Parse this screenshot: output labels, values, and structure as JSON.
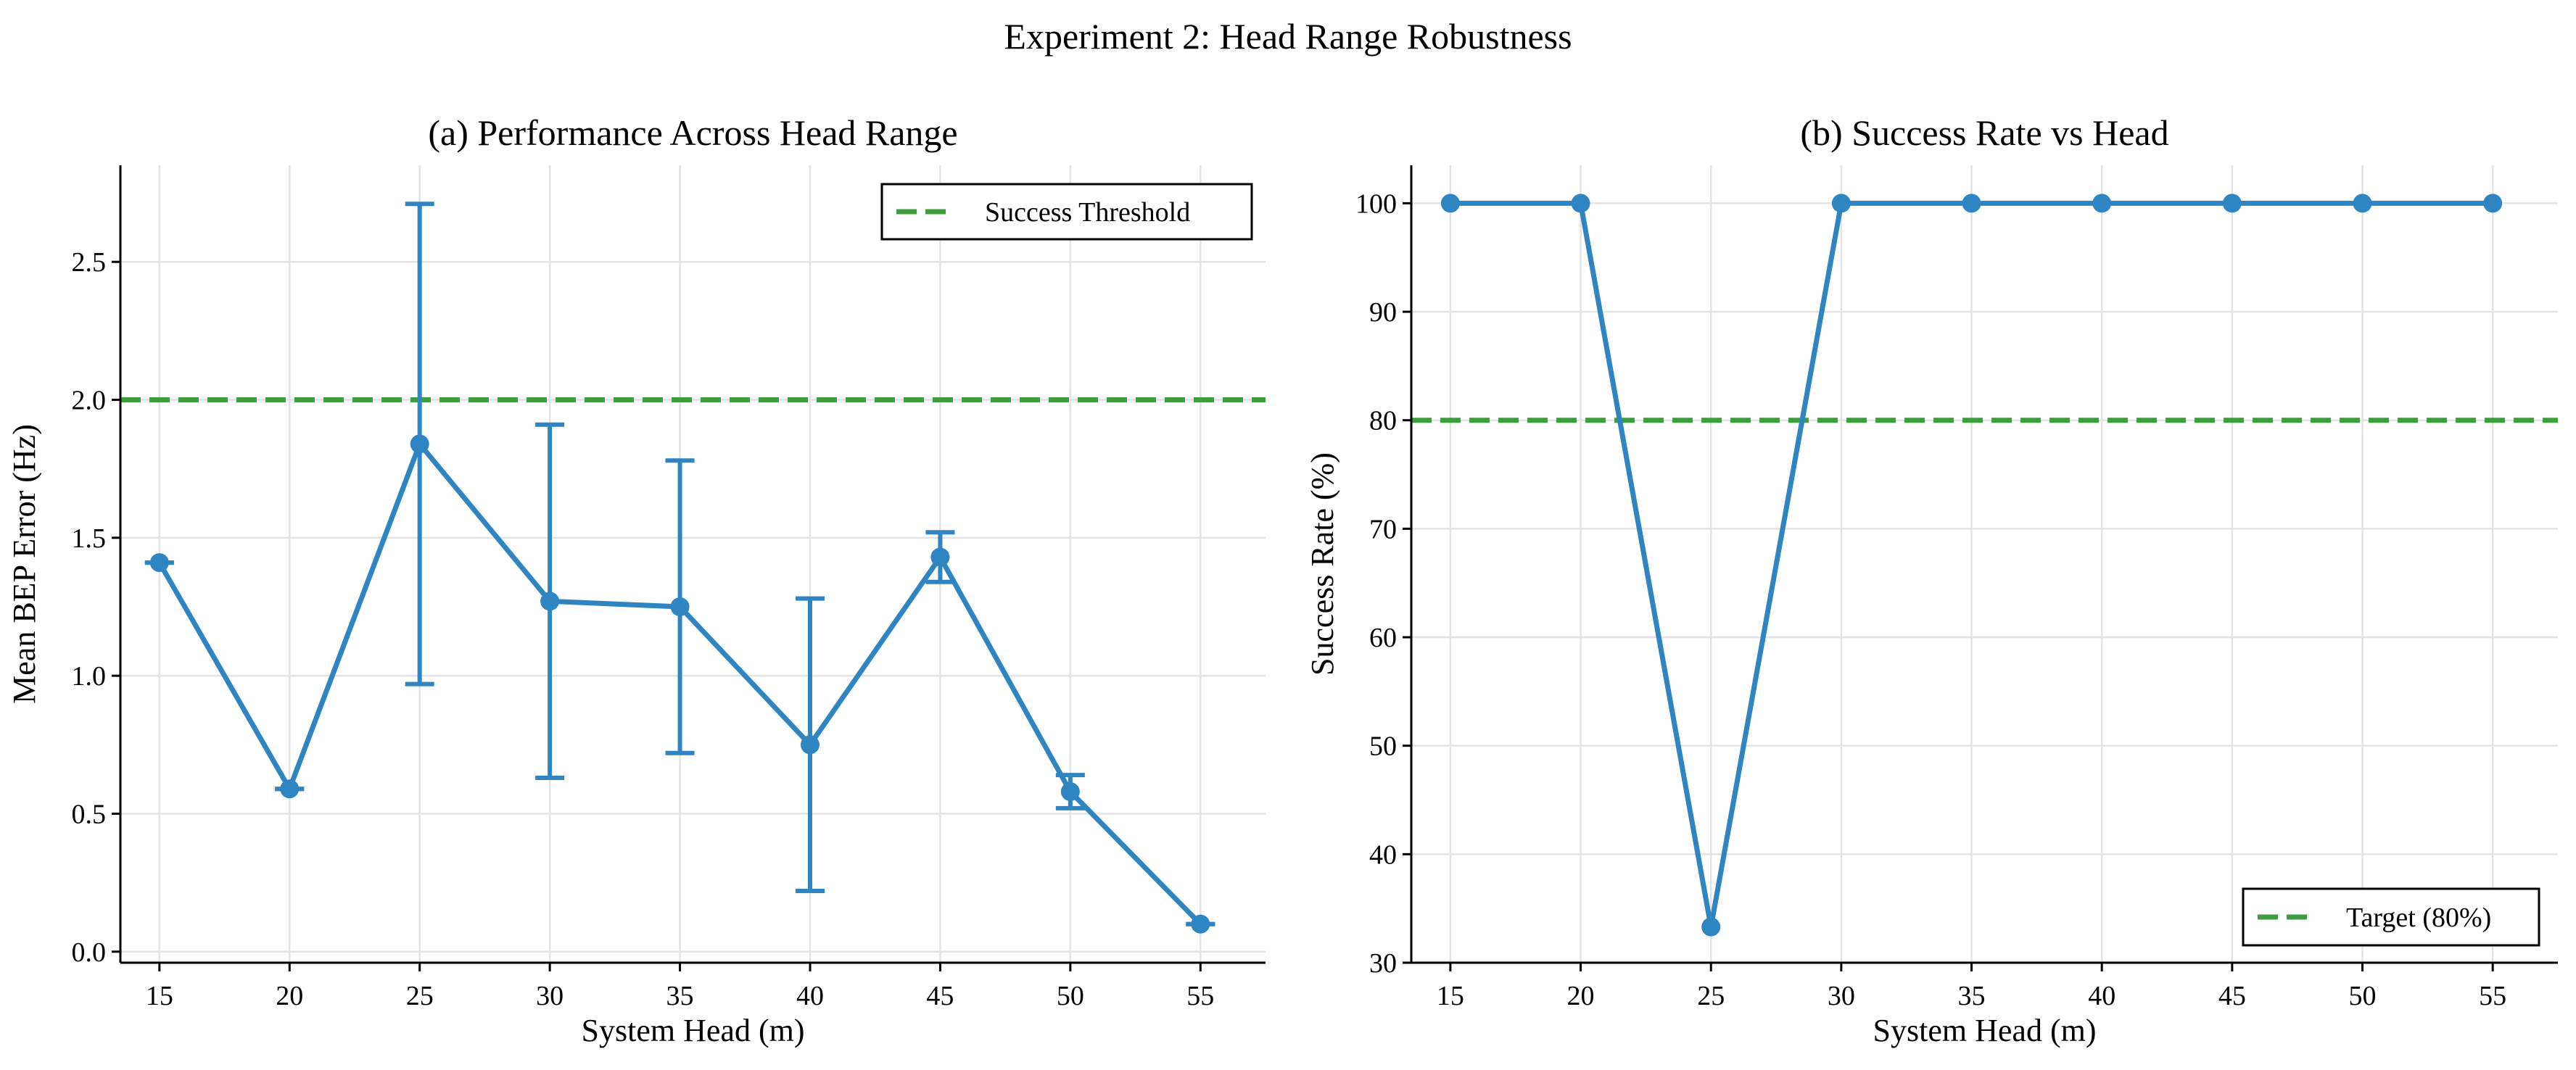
{
  "figure_title": "Experiment 2: Head Range Robustness",
  "colors": {
    "series": "#2f84c2",
    "threshold": "#3e9e3e",
    "grid": "#e3e3e3"
  },
  "chart_data": [
    {
      "type": "line",
      "title": "(a) Performance Across Head Range",
      "xlabel": "System Head (m)",
      "ylabel": "Mean BEP Error (Hz)",
      "x": [
        15,
        20,
        25,
        30,
        35,
        40,
        45,
        50,
        55
      ],
      "xlim": [
        13.5,
        57.5
      ],
      "ylim": [
        -0.04,
        2.85
      ],
      "xticks": [
        15,
        20,
        25,
        30,
        35,
        40,
        45,
        50,
        55
      ],
      "yticks": [
        0.0,
        0.5,
        1.0,
        1.5,
        2.0,
        2.5
      ],
      "ytick_decimals": 1,
      "grid": true,
      "series": [
        {
          "values": [
            1.41,
            0.59,
            1.84,
            1.27,
            1.25,
            0.75,
            1.43,
            0.58,
            0.1
          ],
          "error": [
            0.0,
            0.0,
            0.87,
            0.64,
            0.53,
            0.53,
            0.09,
            0.06,
            0.0
          ]
        }
      ],
      "reference_line": {
        "y": 2.0,
        "label": "Success Threshold"
      },
      "legend": {
        "position": "upper right",
        "entries": [
          "Success Threshold"
        ]
      }
    },
    {
      "type": "line",
      "title": "(b) Success Rate vs Head",
      "xlabel": "System Head (m)",
      "ylabel": "Success Rate (%)",
      "x": [
        15,
        20,
        25,
        30,
        35,
        40,
        45,
        50,
        55
      ],
      "xlim": [
        13.5,
        57.5
      ],
      "ylim": [
        30,
        103.5
      ],
      "xticks": [
        15,
        20,
        25,
        30,
        35,
        40,
        45,
        50,
        55
      ],
      "yticks": [
        30,
        40,
        50,
        60,
        70,
        80,
        90,
        100
      ],
      "ytick_decimals": 0,
      "grid": true,
      "series": [
        {
          "values": [
            100,
            100,
            33.3,
            100,
            100,
            100,
            100,
            100,
            100
          ]
        }
      ],
      "reference_line": {
        "y": 80,
        "label": "Target (80%)"
      },
      "legend": {
        "position": "lower right",
        "entries": [
          "Target (80%)"
        ]
      }
    }
  ]
}
